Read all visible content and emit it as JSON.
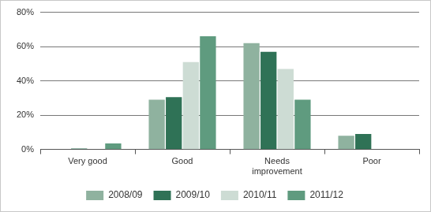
{
  "chart_data": {
    "type": "bar",
    "categories": [
      "Very good",
      "Good",
      "Needs improvement",
      "Poor"
    ],
    "series": [
      {
        "name": "2008/09",
        "color": "#8fb29f",
        "values": [
          0,
          29,
          62,
          8
        ]
      },
      {
        "name": "2009/10",
        "color": "#2f7256",
        "values": [
          0.5,
          30.5,
          57,
          9
        ]
      },
      {
        "name": "2010/11",
        "color": "#cddcd4",
        "values": [
          0,
          51,
          47,
          0
        ]
      },
      {
        "name": "2011/12",
        "color": "#5f9b7f",
        "values": [
          3.5,
          66,
          29,
          0
        ]
      }
    ],
    "ylim": [
      0,
      80
    ],
    "yticks": [
      {
        "value": 0,
        "label": "0%"
      },
      {
        "value": 20,
        "label": "20%"
      },
      {
        "value": 40,
        "label": "40%"
      },
      {
        "value": 60,
        "label": "60%"
      },
      {
        "value": 80,
        "label": "80%"
      }
    ],
    "grid": true,
    "legend": "bottom"
  }
}
